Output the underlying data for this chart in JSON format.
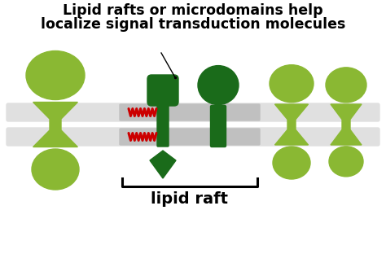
{
  "title_line1": "Lipid rafts or microdomains help",
  "title_line2": "localize signal transduction molecules",
  "label_lipid_raft": "lipid raft",
  "bg_color": "#ffffff",
  "membrane_gray": "#c0c0c0",
  "membrane_light": "#e0e0e0",
  "protein_light_green": "#8ab833",
  "protein_dark_green": "#1a6b1a",
  "zigzag_color": "#cc0000",
  "title_fontsize": 12.5,
  "label_fontsize": 14,
  "fig_w": 4.74,
  "fig_h": 3.12,
  "dpi": 100
}
